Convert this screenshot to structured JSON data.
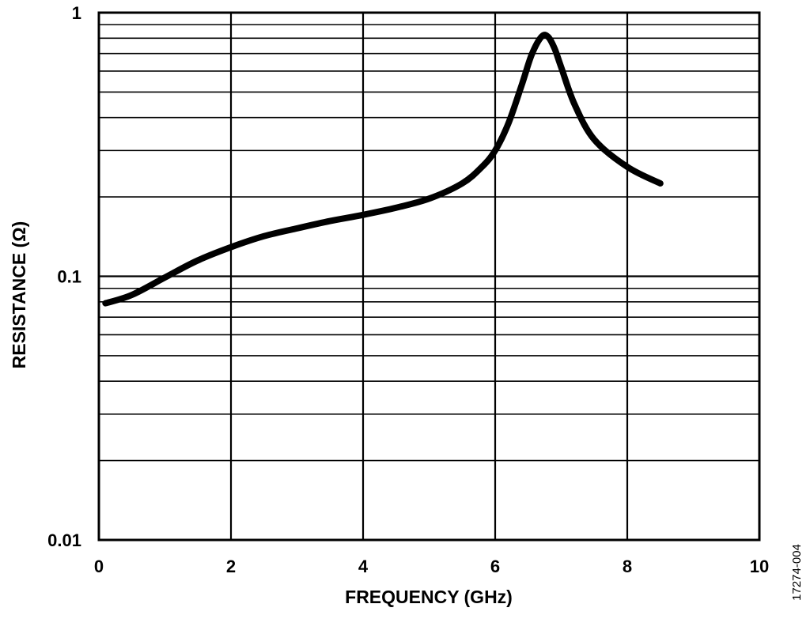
{
  "chart_data": {
    "type": "line",
    "xlabel": "FREQUENCY (GHz)",
    "ylabel": "RESISTANCE (Ω)",
    "figure_id": "17274-004",
    "xlim": [
      0,
      10
    ],
    "ylim": [
      0.01,
      1
    ],
    "yscale": "log",
    "grid": true,
    "x_ticks": [
      {
        "value": 0,
        "label": "0"
      },
      {
        "value": 2,
        "label": "2"
      },
      {
        "value": 4,
        "label": "4"
      },
      {
        "value": 6,
        "label": "6"
      },
      {
        "value": 8,
        "label": "8"
      },
      {
        "value": 10,
        "label": "10"
      }
    ],
    "y_ticks": [
      {
        "value": 0.01,
        "label": "0.01"
      },
      {
        "value": 0.1,
        "label": "0.1"
      },
      {
        "value": 1,
        "label": "1"
      }
    ],
    "series": [
      {
        "x": [
          0.1,
          0.5,
          1.0,
          1.5,
          2.0,
          2.5,
          3.0,
          3.5,
          4.0,
          4.5,
          5.0,
          5.5,
          5.8,
          6.0,
          6.2,
          6.4,
          6.55,
          6.7,
          6.8,
          6.9,
          7.0,
          7.2,
          7.5,
          8.0,
          8.5
        ],
        "y": [
          0.079,
          0.085,
          0.099,
          0.115,
          0.129,
          0.142,
          0.152,
          0.162,
          0.171,
          0.182,
          0.197,
          0.225,
          0.26,
          0.3,
          0.38,
          0.53,
          0.69,
          0.81,
          0.81,
          0.73,
          0.62,
          0.45,
          0.33,
          0.26,
          0.225
        ]
      }
    ]
  }
}
